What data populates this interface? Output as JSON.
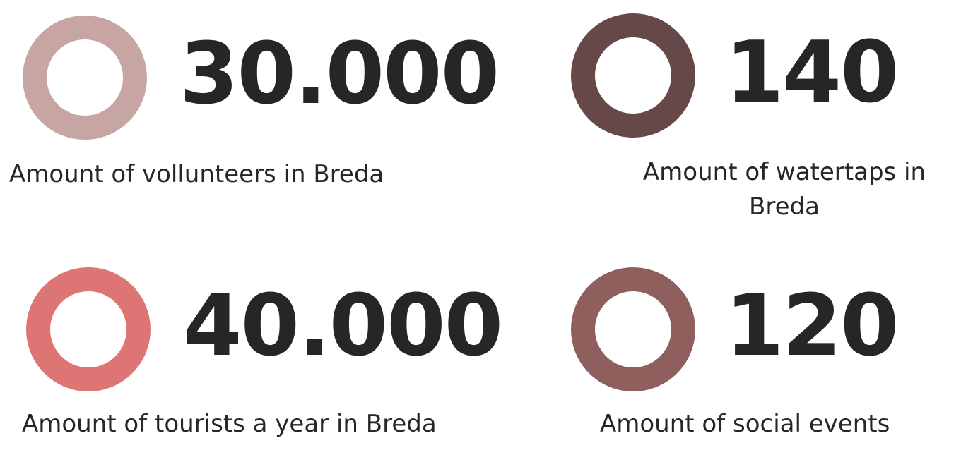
{
  "stats": [
    {
      "value": "30.000",
      "label": "Amount of vollunteers in Breda",
      "ring_color": "#c6a5a3",
      "ring_icon": "ring-icon"
    },
    {
      "value": "140",
      "label": "Amount of watertaps in Breda",
      "ring_color": "#664849",
      "ring_icon": "ring-icon"
    },
    {
      "value": "40.000",
      "label": "Amount of tourists a year in Breda",
      "ring_color": "#de7575",
      "ring_icon": "ring-icon"
    },
    {
      "value": "120",
      "label": "Amount of social events",
      "ring_color": "#8e5f5d",
      "ring_icon": "ring-icon"
    }
  ]
}
